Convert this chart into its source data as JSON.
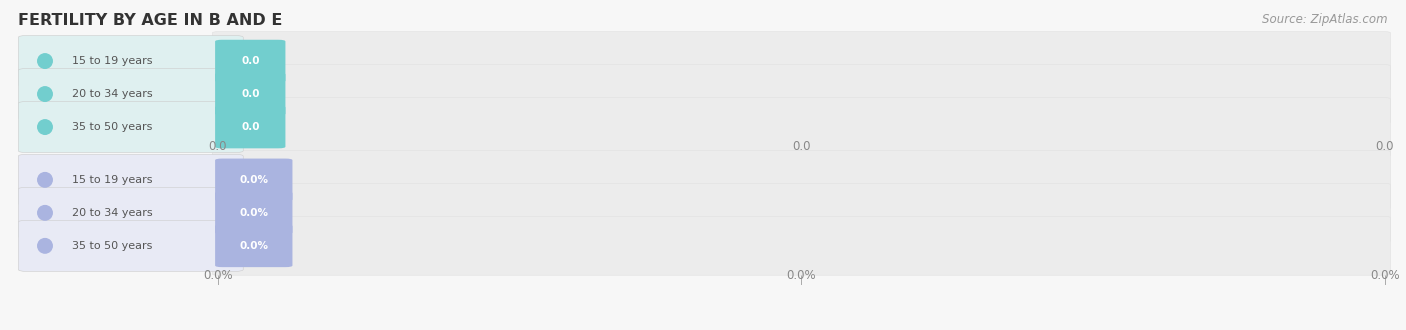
{
  "title": "FERTILITY BY AGE IN B AND E",
  "source": "Source: ZipAtlas.com",
  "top_group": {
    "labels": [
      "15 to 19 years",
      "20 to 34 years",
      "35 to 50 years"
    ],
    "value_labels": [
      "0.0",
      "0.0",
      "0.0"
    ],
    "bar_color": "#72cece",
    "label_bg": "#dff0f0",
    "text_color": "#ffffff",
    "label_text_color": "#555555"
  },
  "bottom_group": {
    "labels": [
      "15 to 19 years",
      "20 to 34 years",
      "35 to 50 years"
    ],
    "value_labels": [
      "0.0%",
      "0.0%",
      "0.0%"
    ],
    "bar_color": "#aab4e0",
    "label_bg": "#e8eaf5",
    "text_color": "#ffffff",
    "label_text_color": "#555555"
  },
  "top_tick_label": "0.0",
  "bottom_tick_label": "0.0%",
  "bg_color": "#f7f7f7",
  "bar_bg_color": "#ececec",
  "bar_bg_edge": "#e0e0e0",
  "title_color": "#333333",
  "source_color": "#999999",
  "tick_color": "#aaaaaa",
  "tick_label_color": "#888888",
  "figsize": [
    14.06,
    3.3
  ],
  "dpi": 100
}
